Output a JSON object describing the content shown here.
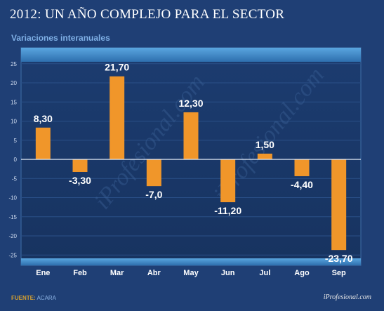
{
  "header": {
    "title": "2012: UN AÑO COMPLEJO PARA EL SECTOR",
    "subtitle": "Variaciones interanuales"
  },
  "footer": {
    "source_label": "FUENTE:",
    "source_value": "ACARA",
    "site": "iProfesional.com"
  },
  "watermark": "iProfesional.com",
  "colors": {
    "background": "#1f3f75",
    "plot_area": "#1b3a6c",
    "bar": "#f0962a",
    "header_band": "#3d88c8"
  },
  "chart_data": {
    "type": "bar",
    "categories": [
      "Ene",
      "Feb",
      "Mar",
      "Abr",
      "May",
      "Jun",
      "Jul",
      "Ago",
      "Sep"
    ],
    "values": [
      8.3,
      -3.3,
      21.7,
      -7.0,
      12.3,
      -11.2,
      1.5,
      -4.4,
      -23.7
    ],
    "data_labels": [
      "8,30",
      "-3,30",
      "21,70",
      "-7,0",
      "12,30",
      "-11,20",
      "1,50",
      "-4,40",
      "-23,70"
    ],
    "yticks": [
      25,
      20,
      15,
      10,
      5,
      0,
      -5,
      -10,
      -15,
      -20,
      -25
    ],
    "ylim": [
      -25,
      25
    ],
    "grid": true,
    "legend": false
  }
}
